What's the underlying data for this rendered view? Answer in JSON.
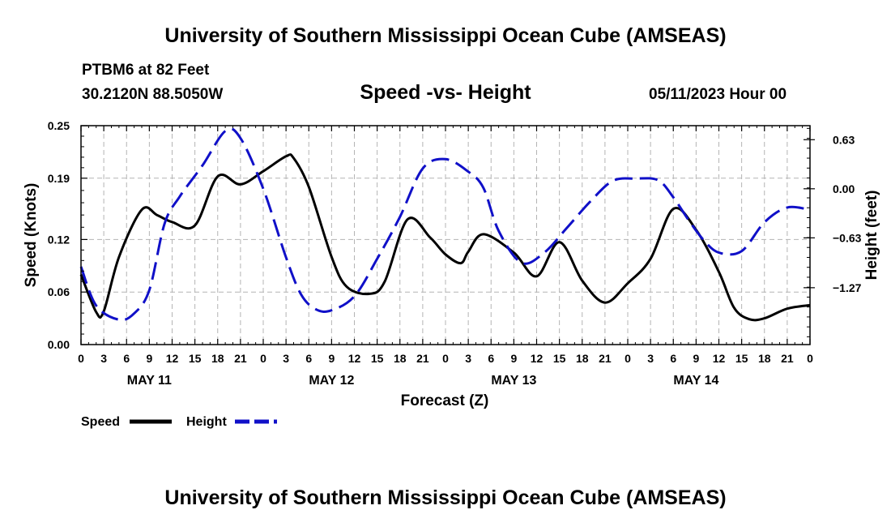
{
  "header": {
    "title_top": "University of Southern Mississippi Ocean Cube (AMSEAS)",
    "title_bottom": "University of Southern Mississippi Ocean Cube (AMSEAS)",
    "station": "PTBM6 at 82 Feet",
    "coords": "30.2120N  88.5050W",
    "subtitle": "Speed -vs- Height",
    "datetime": "05/11/2023 Hour 00"
  },
  "chart_data": {
    "type": "line",
    "title": "Speed -vs- Height",
    "xlabel": "Forecast (Z)",
    "ylabel_left": "Speed (Knots)",
    "ylabel_right": "Height (feet)",
    "x_range_hours": [
      0,
      96
    ],
    "x_tick_step_hours": 3,
    "x_tick_labels": [
      "0",
      "3",
      "6",
      "9",
      "12",
      "15",
      "18",
      "21",
      "0",
      "3",
      "6",
      "9",
      "12",
      "15",
      "18",
      "21",
      "0",
      "3",
      "6",
      "9",
      "12",
      "15",
      "18",
      "21",
      "0",
      "3",
      "6",
      "9",
      "12",
      "15",
      "18",
      "21",
      "0"
    ],
    "date_labels": [
      {
        "label": "MAY 11",
        "hour": 9
      },
      {
        "label": "MAY 12",
        "hour": 33
      },
      {
        "label": "MAY 13",
        "hour": 57
      },
      {
        "label": "MAY 14",
        "hour": 81
      }
    ],
    "ylim_left": [
      0,
      0.25
    ],
    "y_ticks_left": [
      0,
      0.06,
      0.12,
      0.19,
      0.25
    ],
    "y_tick_labels_left": [
      "0.00",
      "0.06",
      "0.12",
      "0.19",
      "0.25"
    ],
    "ylim_right": [
      -2.0,
      0.81
    ],
    "y_ticks_right": [
      -1.27,
      -0.63,
      0.0,
      0.63
    ],
    "y_tick_labels_right": [
      "−1.27",
      "−0.63",
      "0.00",
      "0.63"
    ],
    "grid": true,
    "legend": {
      "placement": "bottom-left",
      "entries": [
        "Speed",
        "Height"
      ]
    },
    "series": [
      {
        "name": "Speed",
        "axis": "left",
        "color": "#000000",
        "style": "solid",
        "x": [
          0,
          2,
          3,
          5,
          8,
          10,
          12,
          15,
          18,
          21,
          24,
          27,
          28,
          30,
          33,
          35,
          38,
          40,
          43,
          46,
          48,
          50,
          51,
          53,
          57,
          60,
          63,
          66,
          69,
          72,
          75,
          78,
          81,
          84,
          86,
          88,
          90,
          93,
          96
        ],
        "values": [
          0.08,
          0.037,
          0.038,
          0.1,
          0.154,
          0.148,
          0.14,
          0.136,
          0.192,
          0.183,
          0.198,
          0.215,
          0.213,
          0.18,
          0.1,
          0.066,
          0.058,
          0.072,
          0.143,
          0.122,
          0.103,
          0.093,
          0.106,
          0.126,
          0.105,
          0.078,
          0.117,
          0.073,
          0.048,
          0.07,
          0.098,
          0.155,
          0.131,
          0.083,
          0.042,
          0.029,
          0.03,
          0.041,
          0.045
        ]
      },
      {
        "name": "Height",
        "axis": "right",
        "color": "#1010c8",
        "style": "dashed",
        "x": [
          0,
          2,
          5,
          7,
          9,
          11,
          13,
          16,
          19,
          21,
          24,
          27,
          29,
          31,
          33,
          36,
          39,
          42,
          45,
          48,
          51,
          53,
          55,
          58,
          61,
          64,
          67,
          70,
          73,
          76,
          78,
          80,
          82,
          84,
          87,
          90,
          93,
          96
        ],
        "values": [
          -1.0,
          -1.5,
          -1.68,
          -1.6,
          -1.3,
          -0.45,
          -0.1,
          0.3,
          0.74,
          0.65,
          0.0,
          -0.88,
          -1.36,
          -1.55,
          -1.56,
          -1.38,
          -0.9,
          -0.36,
          0.26,
          0.38,
          0.22,
          0.01,
          -0.54,
          -0.95,
          -0.82,
          -0.5,
          -0.17,
          0.1,
          0.13,
          0.11,
          -0.11,
          -0.4,
          -0.66,
          -0.82,
          -0.8,
          -0.43,
          -0.24,
          -0.27
        ]
      }
    ]
  }
}
